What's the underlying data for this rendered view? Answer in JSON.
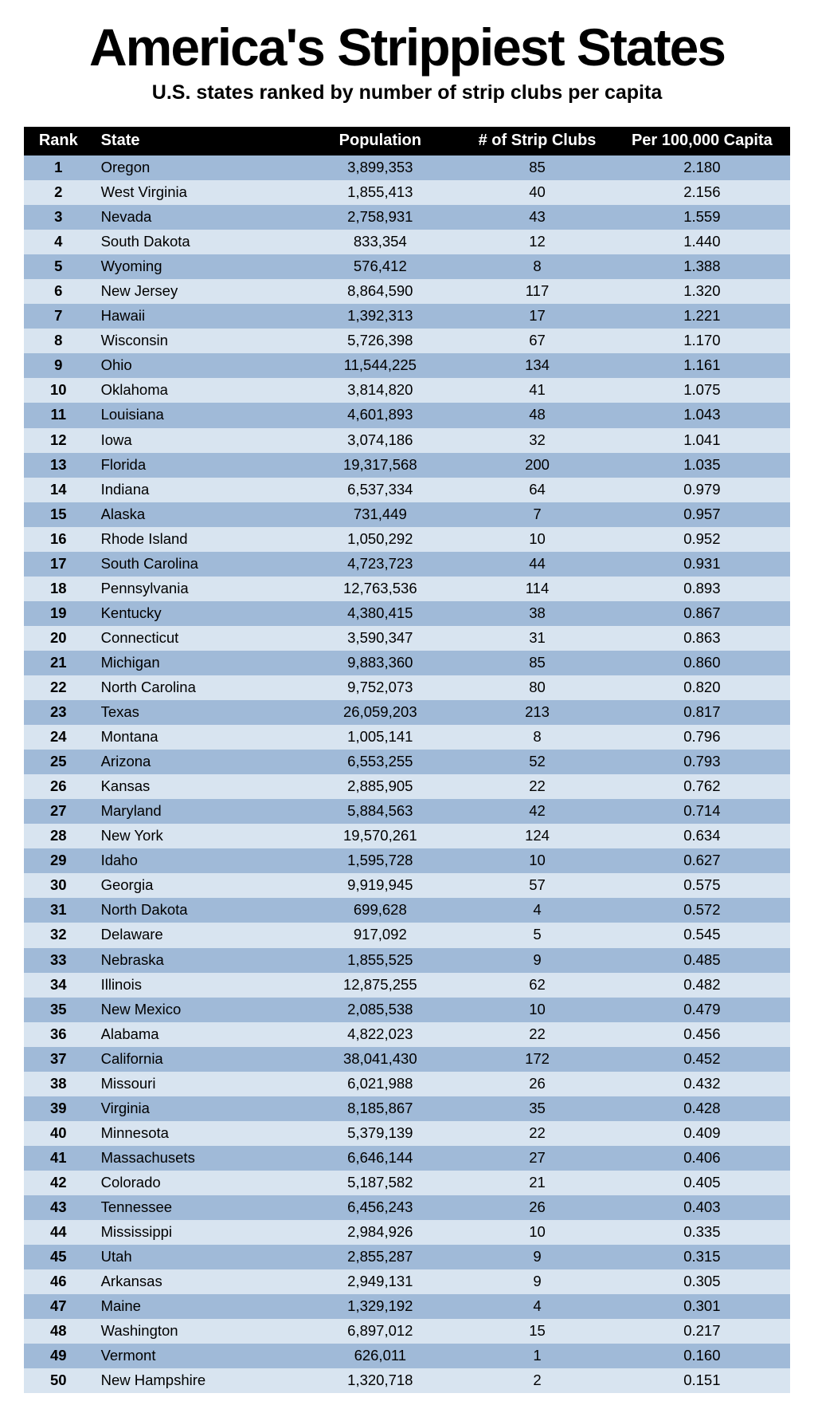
{
  "title": "America's Strippiest States",
  "subtitle": "U.S. states ranked by number of strip clubs per capita",
  "table": {
    "type": "table",
    "header_bg": "#000000",
    "header_fg": "#ffffff",
    "row_colors": [
      "#a0bad8",
      "#d8e4f0"
    ],
    "body_font": "Verdana",
    "body_fontsize": 18.5,
    "header_fontsize": 20,
    "columns": [
      {
        "key": "rank",
        "label": "Rank",
        "align": "center",
        "width_pct": 9,
        "bold": true
      },
      {
        "key": "state",
        "label": "State",
        "align": "left",
        "width_pct": 27
      },
      {
        "key": "pop",
        "label": "Population",
        "align": "center",
        "width_pct": 21
      },
      {
        "key": "clubs",
        "label": "# of Strip Clubs",
        "align": "center",
        "width_pct": 20
      },
      {
        "key": "capita",
        "label": "Per 100,000 Capita",
        "align": "center",
        "width_pct": 23
      }
    ],
    "rows": [
      {
        "rank": "1",
        "state": "Oregon",
        "pop": "3,899,353",
        "clubs": "85",
        "capita": "2.180"
      },
      {
        "rank": "2",
        "state": "West Virginia",
        "pop": "1,855,413",
        "clubs": "40",
        "capita": "2.156"
      },
      {
        "rank": "3",
        "state": "Nevada",
        "pop": "2,758,931",
        "clubs": "43",
        "capita": "1.559"
      },
      {
        "rank": "4",
        "state": "South Dakota",
        "pop": "833,354",
        "clubs": "12",
        "capita": "1.440"
      },
      {
        "rank": "5",
        "state": "Wyoming",
        "pop": "576,412",
        "clubs": "8",
        "capita": "1.388"
      },
      {
        "rank": "6",
        "state": "New Jersey",
        "pop": "8,864,590",
        "clubs": "117",
        "capita": "1.320"
      },
      {
        "rank": "7",
        "state": "Hawaii",
        "pop": "1,392,313",
        "clubs": "17",
        "capita": "1.221"
      },
      {
        "rank": "8",
        "state": "Wisconsin",
        "pop": "5,726,398",
        "clubs": "67",
        "capita": "1.170"
      },
      {
        "rank": "9",
        "state": "Ohio",
        "pop": "11,544,225",
        "clubs": "134",
        "capita": "1.161"
      },
      {
        "rank": "10",
        "state": "Oklahoma",
        "pop": "3,814,820",
        "clubs": "41",
        "capita": "1.075"
      },
      {
        "rank": "11",
        "state": "Louisiana",
        "pop": "4,601,893",
        "clubs": "48",
        "capita": "1.043"
      },
      {
        "rank": "12",
        "state": "Iowa",
        "pop": "3,074,186",
        "clubs": "32",
        "capita": "1.041"
      },
      {
        "rank": "13",
        "state": "Florida",
        "pop": "19,317,568",
        "clubs": "200",
        "capita": "1.035"
      },
      {
        "rank": "14",
        "state": "Indiana",
        "pop": "6,537,334",
        "clubs": "64",
        "capita": "0.979"
      },
      {
        "rank": "15",
        "state": "Alaska",
        "pop": "731,449",
        "clubs": "7",
        "capita": "0.957"
      },
      {
        "rank": "16",
        "state": "Rhode Island",
        "pop": "1,050,292",
        "clubs": "10",
        "capita": "0.952"
      },
      {
        "rank": "17",
        "state": "South Carolina",
        "pop": "4,723,723",
        "clubs": "44",
        "capita": "0.931"
      },
      {
        "rank": "18",
        "state": "Pennsylvania",
        "pop": "12,763,536",
        "clubs": "114",
        "capita": "0.893"
      },
      {
        "rank": "19",
        "state": "Kentucky",
        "pop": "4,380,415",
        "clubs": "38",
        "capita": "0.867"
      },
      {
        "rank": "20",
        "state": "Connecticut",
        "pop": "3,590,347",
        "clubs": "31",
        "capita": "0.863"
      },
      {
        "rank": "21",
        "state": "Michigan",
        "pop": "9,883,360",
        "clubs": "85",
        "capita": "0.860"
      },
      {
        "rank": "22",
        "state": "North Carolina",
        "pop": "9,752,073",
        "clubs": "80",
        "capita": "0.820"
      },
      {
        "rank": "23",
        "state": "Texas",
        "pop": "26,059,203",
        "clubs": "213",
        "capita": "0.817"
      },
      {
        "rank": "24",
        "state": "Montana",
        "pop": "1,005,141",
        "clubs": "8",
        "capita": "0.796"
      },
      {
        "rank": "25",
        "state": "Arizona",
        "pop": "6,553,255",
        "clubs": "52",
        "capita": "0.793"
      },
      {
        "rank": "26",
        "state": "Kansas",
        "pop": "2,885,905",
        "clubs": "22",
        "capita": "0.762"
      },
      {
        "rank": "27",
        "state": "Maryland",
        "pop": "5,884,563",
        "clubs": "42",
        "capita": "0.714"
      },
      {
        "rank": "28",
        "state": "New York",
        "pop": "19,570,261",
        "clubs": "124",
        "capita": "0.634"
      },
      {
        "rank": "29",
        "state": "Idaho",
        "pop": "1,595,728",
        "clubs": "10",
        "capita": "0.627"
      },
      {
        "rank": "30",
        "state": "Georgia",
        "pop": "9,919,945",
        "clubs": "57",
        "capita": "0.575"
      },
      {
        "rank": "31",
        "state": "North Dakota",
        "pop": "699,628",
        "clubs": "4",
        "capita": "0.572"
      },
      {
        "rank": "32",
        "state": "Delaware",
        "pop": "917,092",
        "clubs": "5",
        "capita": "0.545"
      },
      {
        "rank": "33",
        "state": "Nebraska",
        "pop": "1,855,525",
        "clubs": "9",
        "capita": "0.485"
      },
      {
        "rank": "34",
        "state": "Illinois",
        "pop": "12,875,255",
        "clubs": "62",
        "capita": "0.482"
      },
      {
        "rank": "35",
        "state": "New Mexico",
        "pop": "2,085,538",
        "clubs": "10",
        "capita": "0.479"
      },
      {
        "rank": "36",
        "state": "Alabama",
        "pop": "4,822,023",
        "clubs": "22",
        "capita": "0.456"
      },
      {
        "rank": "37",
        "state": "California",
        "pop": "38,041,430",
        "clubs": "172",
        "capita": "0.452"
      },
      {
        "rank": "38",
        "state": "Missouri",
        "pop": "6,021,988",
        "clubs": "26",
        "capita": "0.432"
      },
      {
        "rank": "39",
        "state": "Virginia",
        "pop": "8,185,867",
        "clubs": "35",
        "capita": "0.428"
      },
      {
        "rank": "40",
        "state": "Minnesota",
        "pop": "5,379,139",
        "clubs": "22",
        "capita": "0.409"
      },
      {
        "rank": "41",
        "state": "Massachusets",
        "pop": "6,646,144",
        "clubs": "27",
        "capita": "0.406"
      },
      {
        "rank": "42",
        "state": "Colorado",
        "pop": "5,187,582",
        "clubs": "21",
        "capita": "0.405"
      },
      {
        "rank": "43",
        "state": "Tennessee",
        "pop": "6,456,243",
        "clubs": "26",
        "capita": "0.403"
      },
      {
        "rank": "44",
        "state": "Mississippi",
        "pop": "2,984,926",
        "clubs": "10",
        "capita": "0.335"
      },
      {
        "rank": "45",
        "state": "Utah",
        "pop": "2,855,287",
        "clubs": "9",
        "capita": "0.315"
      },
      {
        "rank": "46",
        "state": "Arkansas",
        "pop": "2,949,131",
        "clubs": "9",
        "capita": "0.305"
      },
      {
        "rank": "47",
        "state": "Maine",
        "pop": "1,329,192",
        "clubs": "4",
        "capita": "0.301"
      },
      {
        "rank": "48",
        "state": "Washington",
        "pop": "6,897,012",
        "clubs": "15",
        "capita": "0.217"
      },
      {
        "rank": "49",
        "state": "Vermont",
        "pop": "626,011",
        "clubs": "1",
        "capita": "0.160"
      },
      {
        "rank": "50",
        "state": "New Hampshire",
        "pop": "1,320,718",
        "clubs": "2",
        "capita": "0.151"
      }
    ]
  }
}
